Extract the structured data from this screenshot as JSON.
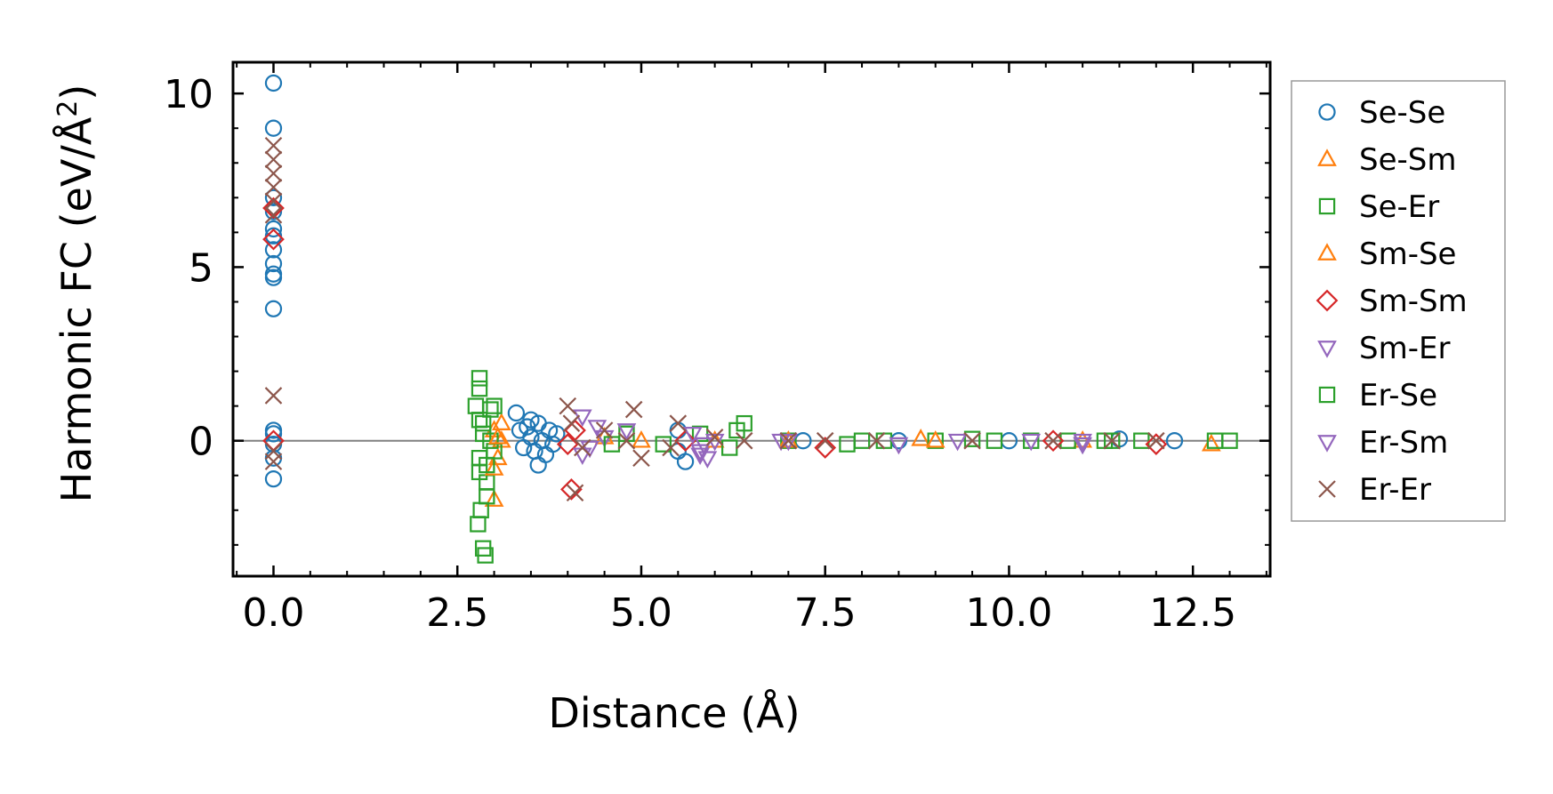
{
  "chart_data": {
    "type": "scatter",
    "title": "",
    "xlabel": "Distance (Å)",
    "ylabel_main": "Harmonic FC (eV/Å",
    "ylabel_sup": "2",
    "ylabel_close": ")",
    "xlim": [
      -0.55,
      13.55
    ],
    "ylim": [
      -3.9,
      10.9
    ],
    "x_ticks": [
      0.0,
      2.5,
      5.0,
      7.5,
      10.0,
      12.5
    ],
    "x_tick_labels": [
      "0.0",
      "2.5",
      "5.0",
      "7.5",
      "10.0",
      "12.5"
    ],
    "y_ticks": [
      0,
      5,
      10
    ],
    "y_tick_labels": [
      "0",
      "5",
      "10"
    ],
    "zero_line": 0,
    "legend_position": "outside-right",
    "series": [
      {
        "name": "Se-Se",
        "marker": "circle",
        "color": "#1f77b4",
        "points": [
          [
            0,
            10.3
          ],
          [
            0,
            9.0
          ],
          [
            0,
            7.0
          ],
          [
            0,
            6.6
          ],
          [
            0,
            6.1
          ],
          [
            0,
            5.9
          ],
          [
            0,
            5.5
          ],
          [
            0,
            5.1
          ],
          [
            0,
            4.8
          ],
          [
            0,
            4.7
          ],
          [
            0,
            3.8
          ],
          [
            0,
            0.3
          ],
          [
            0,
            0.2
          ],
          [
            0,
            -0.1
          ],
          [
            0,
            -0.5
          ],
          [
            0,
            -1.1
          ],
          [
            3.3,
            0.8
          ],
          [
            3.35,
            0.3
          ],
          [
            3.4,
            -0.2
          ],
          [
            3.45,
            0.4
          ],
          [
            3.5,
            0.1
          ],
          [
            3.55,
            -0.3
          ],
          [
            3.6,
            0.5
          ],
          [
            3.65,
            0.0
          ],
          [
            3.7,
            -0.4
          ],
          [
            3.75,
            0.3
          ],
          [
            3.8,
            -0.1
          ],
          [
            3.85,
            0.2
          ],
          [
            3.6,
            -0.7
          ],
          [
            3.5,
            0.6
          ],
          [
            5.5,
            -0.3
          ],
          [
            5.6,
            -0.6
          ],
          [
            5.5,
            0.3
          ],
          [
            7.2,
            0.0
          ],
          [
            8.5,
            0.0
          ],
          [
            10.0,
            0.0
          ],
          [
            11.5,
            0.05
          ],
          [
            12.25,
            0.0
          ]
        ]
      },
      {
        "name": "Se-Sm",
        "marker": "triangle-up",
        "color": "#ff7f0e",
        "points": [
          [
            3.0,
            -1.7
          ],
          [
            3.0,
            0.3
          ],
          [
            3.05,
            -0.5
          ],
          [
            3.1,
            0.0
          ],
          [
            4.5,
            0.1
          ],
          [
            6.0,
            0.0
          ],
          [
            8.8,
            0.05
          ],
          [
            11.0,
            0.0
          ],
          [
            12.75,
            -0.1
          ]
        ]
      },
      {
        "name": "Se-Er",
        "marker": "square",
        "color": "#2ca02c",
        "points": [
          [
            2.8,
            1.8
          ],
          [
            2.8,
            1.5
          ],
          [
            2.82,
            -2.0
          ],
          [
            2.85,
            -3.1
          ],
          [
            2.88,
            -3.3
          ],
          [
            2.8,
            -0.5
          ],
          [
            2.85,
            0.5
          ],
          [
            2.9,
            -1.2
          ],
          [
            2.75,
            1.0
          ],
          [
            2.95,
            0.0
          ],
          [
            2.8,
            -0.9
          ],
          [
            2.9,
            -1.6
          ],
          [
            2.95,
            0.9
          ],
          [
            3.0,
            -0.3
          ],
          [
            2.85,
            0.2
          ],
          [
            2.78,
            -2.4
          ],
          [
            4.8,
            0.2
          ],
          [
            5.3,
            -0.1
          ],
          [
            5.8,
            0.2
          ],
          [
            6.2,
            -0.2
          ],
          [
            6.4,
            0.5
          ],
          [
            7.0,
            0.0
          ],
          [
            7.8,
            -0.1
          ],
          [
            8.3,
            0.0
          ],
          [
            9.0,
            0.0
          ],
          [
            9.5,
            0.05
          ],
          [
            10.3,
            0.0
          ],
          [
            10.8,
            0.0
          ],
          [
            11.3,
            0.0
          ],
          [
            11.8,
            0.0
          ],
          [
            12.8,
            0.0
          ],
          [
            13.0,
            0.0
          ]
        ]
      },
      {
        "name": "Sm-Se",
        "marker": "triangle-up",
        "color": "#ff7f0e",
        "points": [
          [
            3.05,
            0.1
          ],
          [
            3.0,
            -0.8
          ],
          [
            3.1,
            0.5
          ],
          [
            5.0,
            0.0
          ],
          [
            7.0,
            0.0
          ],
          [
            9.0,
            0.0
          ]
        ]
      },
      {
        "name": "Sm-Sm",
        "marker": "diamond",
        "color": "#d62728",
        "points": [
          [
            0,
            6.7
          ],
          [
            0,
            5.8
          ],
          [
            0,
            0.0
          ],
          [
            4.05,
            -1.4
          ],
          [
            4.1,
            0.3
          ],
          [
            4.0,
            -0.1
          ],
          [
            5.6,
            0.0
          ],
          [
            7.5,
            -0.2
          ],
          [
            10.6,
            0.0
          ],
          [
            12.0,
            -0.1
          ]
        ]
      },
      {
        "name": "Sm-Er",
        "marker": "triangle-down",
        "color": "#9467bd",
        "points": [
          [
            4.2,
            0.7
          ],
          [
            4.3,
            -0.2
          ],
          [
            4.5,
            0.1
          ],
          [
            4.8,
            0.3
          ],
          [
            5.8,
            -0.3
          ],
          [
            5.9,
            -0.5
          ],
          [
            6.0,
            0.0
          ],
          [
            5.7,
            0.2
          ],
          [
            5.85,
            -0.1
          ],
          [
            7.0,
            0.0
          ],
          [
            8.5,
            -0.1
          ],
          [
            10.3,
            0.0
          ],
          [
            11.0,
            0.0
          ]
        ]
      },
      {
        "name": "Er-Se",
        "marker": "square",
        "color": "#2ca02c",
        "points": [
          [
            2.8,
            0.6
          ],
          [
            2.9,
            -0.7
          ],
          [
            3.0,
            1.0
          ],
          [
            4.6,
            -0.1
          ],
          [
            6.3,
            0.3
          ],
          [
            8.0,
            0.0
          ],
          [
            9.8,
            0.0
          ],
          [
            11.4,
            0.0
          ]
        ]
      },
      {
        "name": "Er-Sm",
        "marker": "triangle-down",
        "color": "#9467bd",
        "points": [
          [
            4.2,
            -0.4
          ],
          [
            4.4,
            0.4
          ],
          [
            5.8,
            -0.4
          ],
          [
            6.9,
            0.0
          ],
          [
            9.3,
            0.0
          ],
          [
            11.0,
            -0.1
          ]
        ]
      },
      {
        "name": "Er-Er",
        "marker": "x",
        "color": "#8c564b",
        "points": [
          [
            0,
            8.5
          ],
          [
            0,
            8.1
          ],
          [
            0,
            7.7
          ],
          [
            0,
            7.3
          ],
          [
            0,
            6.9
          ],
          [
            0,
            6.5
          ],
          [
            0,
            1.3
          ],
          [
            0,
            -0.3
          ],
          [
            0,
            -0.6
          ],
          [
            4.0,
            1.0
          ],
          [
            4.1,
            -1.5
          ],
          [
            4.05,
            0.5
          ],
          [
            4.2,
            -0.2
          ],
          [
            4.5,
            0.3
          ],
          [
            4.9,
            0.9
          ],
          [
            4.8,
            0.0
          ],
          [
            5.0,
            -0.5
          ],
          [
            5.5,
            0.5
          ],
          [
            5.4,
            -0.2
          ],
          [
            6.0,
            0.1
          ],
          [
            6.4,
            0.0
          ],
          [
            7.0,
            0.0
          ],
          [
            7.5,
            0.0
          ],
          [
            8.2,
            0.0
          ],
          [
            9.5,
            0.0
          ],
          [
            10.6,
            0.0
          ],
          [
            11.4,
            0.0
          ],
          [
            12.0,
            0.0
          ]
        ]
      }
    ]
  }
}
